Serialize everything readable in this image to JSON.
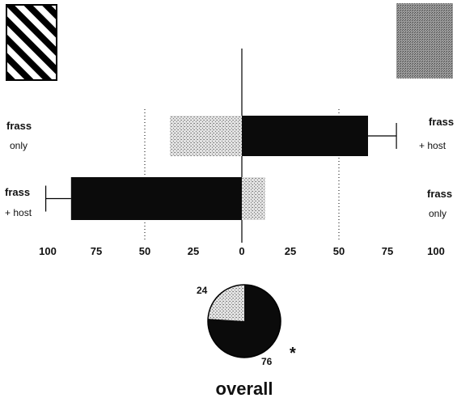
{
  "chart_data": {
    "type": "bar",
    "orientation": "horizontal-diverging",
    "rows": [
      {
        "left": {
          "label": "frass",
          "sublabel": "only",
          "value": 37
        },
        "right": {
          "label": "frass",
          "sublabel": "+ host",
          "value": 65,
          "error": 17
        }
      },
      {
        "left": {
          "label": "frass",
          "sublabel": "+ host",
          "value": 88,
          "error": 25
        },
        "right": {
          "label": "frass",
          "sublabel": "only",
          "value": 12
        }
      }
    ],
    "ticks_left": [
      100,
      75,
      50,
      25,
      0
    ],
    "ticks_right": [
      25,
      50,
      75,
      100
    ],
    "xlim": [
      -100,
      100
    ],
    "reference_lines": [
      -50,
      50
    ],
    "pie": {
      "values": [
        76,
        24
      ],
      "labels": [
        "76",
        "24"
      ],
      "significance": "*",
      "title": "overall"
    },
    "colors": {
      "frass_host": "#0b0b0b",
      "frass_only": "#bdbdbd",
      "legend_hatch": "#000000",
      "legend_dark": "#8a8a8a"
    }
  }
}
